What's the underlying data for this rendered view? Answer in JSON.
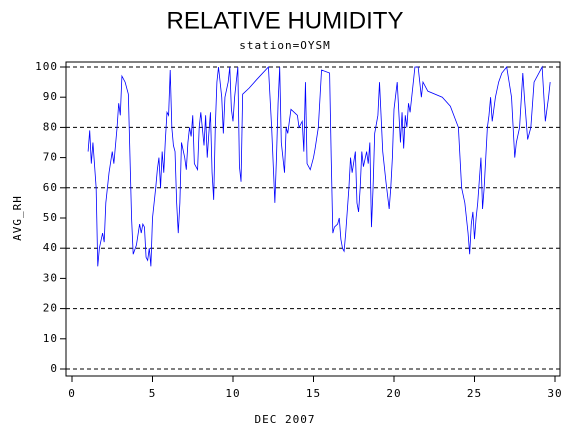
{
  "chart_data": {
    "type": "line",
    "title": "RELATIVE HUMIDITY",
    "subtitle": "station=OYSM",
    "x_label": "DEC 2007",
    "y_label": "AVG_RH",
    "xlim": [
      0,
      30
    ],
    "xticks": [
      0,
      5,
      10,
      15,
      20,
      25,
      30
    ],
    "ylim": [
      0,
      100
    ],
    "yticks": [
      0,
      10,
      20,
      30,
      40,
      50,
      60,
      70,
      80,
      90,
      100
    ],
    "gridlines": [
      0,
      20,
      40,
      60,
      80,
      100
    ],
    "color": "#0000ff",
    "x": [
      1.0,
      1.1,
      1.2,
      1.3,
      1.5,
      1.6,
      1.7,
      1.9,
      2.0,
      2.1,
      2.3,
      2.5,
      2.6,
      2.8,
      2.9,
      3.0,
      3.1,
      3.3,
      3.5,
      3.7,
      3.8,
      4.0,
      4.2,
      4.3,
      4.4,
      4.5,
      4.6,
      4.7,
      4.8,
      4.9,
      5.0,
      5.2,
      5.3,
      5.4,
      5.5,
      5.6,
      5.7,
      5.8,
      5.9,
      6.0,
      6.1,
      6.2,
      6.3,
      6.4,
      6.5,
      6.6,
      6.7,
      6.8,
      7.0,
      7.1,
      7.2,
      7.3,
      7.4,
      7.5,
      7.6,
      7.8,
      7.9,
      8.0,
      8.2,
      8.3,
      8.4,
      8.5,
      8.6,
      8.7,
      8.8,
      8.9,
      9.0,
      9.1,
      9.3,
      9.4,
      9.5,
      9.7,
      9.8,
      9.9,
      10.0,
      10.1,
      10.3,
      10.4,
      10.5,
      10.6,
      11.0,
      11.5,
      12.2,
      12.4,
      12.6,
      12.7,
      12.8,
      12.9,
      13.0,
      13.1,
      13.2,
      13.3,
      13.4,
      13.5,
      13.6,
      13.8,
      14.0,
      14.1,
      14.3,
      14.4,
      14.5,
      14.6,
      14.8,
      15.0,
      15.1,
      15.3,
      15.5,
      16.0,
      16.1,
      16.2,
      16.3,
      16.5,
      16.6,
      16.7,
      16.8,
      16.9,
      17.0,
      17.2,
      17.3,
      17.4,
      17.6,
      17.7,
      17.8,
      17.9,
      18.0,
      18.1,
      18.3,
      18.4,
      18.5,
      18.6,
      18.7,
      18.8,
      19.0,
      19.1,
      19.3,
      19.5,
      19.7,
      19.8,
      19.9,
      20.0,
      20.2,
      20.4,
      20.5,
      20.6,
      20.7,
      20.8,
      20.9,
      21.0,
      21.3,
      21.5,
      21.7,
      21.8,
      22.1,
      23.0,
      23.5,
      24.0,
      24.2,
      24.4,
      24.6,
      24.7,
      24.8,
      24.9,
      25.0,
      25.1,
      25.2,
      25.4,
      25.5,
      25.6,
      25.8,
      25.9,
      26.0,
      26.1,
      26.3,
      26.5,
      26.7,
      27.0,
      27.3,
      27.5,
      27.6,
      27.8,
      28.0,
      28.1,
      28.3,
      28.5,
      28.7,
      29.0,
      29.2,
      29.4,
      29.6,
      29.7
    ],
    "values": [
      72,
      79,
      68,
      75,
      60,
      34,
      40,
      45,
      42,
      55,
      65,
      72,
      68,
      80,
      88,
      84,
      97,
      95,
      91,
      50,
      38,
      41,
      48,
      45,
      48,
      47,
      37,
      36,
      40,
      34,
      50,
      60,
      66,
      70,
      60,
      72,
      65,
      76,
      85,
      84,
      99,
      80,
      74,
      72,
      55,
      45,
      55,
      75,
      70,
      66,
      75,
      80,
      77,
      84,
      68,
      66,
      80,
      85,
      74,
      84,
      70,
      78,
      85,
      65,
      56,
      80,
      95,
      100,
      90,
      78,
      90,
      95,
      100,
      86,
      82,
      90,
      100,
      67,
      62,
      91,
      93,
      96,
      100,
      80,
      55,
      70,
      88,
      100,
      75,
      70,
      65,
      80,
      78,
      82,
      86,
      85,
      84,
      80,
      82,
      72,
      95,
      68,
      66,
      70,
      73,
      80,
      99,
      98,
      70,
      45,
      47,
      48,
      50,
      43,
      40,
      39,
      45,
      60,
      70,
      65,
      72,
      55,
      52,
      60,
      72,
      67,
      72,
      68,
      75,
      47,
      60,
      78,
      84,
      95,
      72,
      62,
      53,
      60,
      70,
      86,
      95,
      75,
      85,
      73,
      84,
      80,
      88,
      85,
      100,
      100,
      90,
      95,
      92,
      90,
      87,
      80,
      60,
      55,
      45,
      38,
      48,
      52,
      43,
      50,
      55,
      70,
      53,
      60,
      80,
      84,
      90,
      82,
      90,
      95,
      98,
      100,
      90,
      70,
      75,
      80,
      98,
      90,
      76,
      80,
      95,
      98,
      100,
      82,
      90,
      95
    ]
  }
}
